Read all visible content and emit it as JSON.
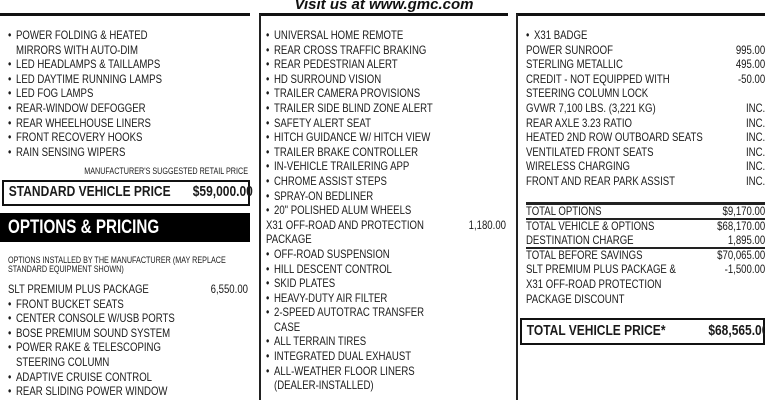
{
  "header": {
    "title": "Visit us at www.gmc.com"
  },
  "left": {
    "rows": [
      {
        "kind": "bullet",
        "text": "POWER FOLDING & HEATED"
      },
      {
        "kind": "cont",
        "text": "MIRRORS WITH AUTO-DIM"
      },
      {
        "kind": "bullet",
        "text": "LED HEADLAMPS & TAILLAMPS"
      },
      {
        "kind": "bullet",
        "text": "LED DAYTIME RUNNING LAMPS"
      },
      {
        "kind": "bullet",
        "text": "LED FOG LAMPS"
      },
      {
        "kind": "bullet",
        "text": "REAR-WINDOW DEFOGGER"
      },
      {
        "kind": "bullet",
        "text": "REAR WHEELHOUSE LINERS"
      },
      {
        "kind": "bullet",
        "text": "FRONT RECOVERY HOOKS"
      },
      {
        "kind": "bullet",
        "text": "RAIN SENSING WIPERS"
      }
    ],
    "msrp_caption": "MANUFACTURER'S SUGGESTED RETAIL PRICE",
    "standard_price_label": "STANDARD VEHICLE PRICE",
    "standard_price_value": "$59,000.00",
    "options_header": "OPTIONS & PRICING",
    "options_caption_1": "OPTIONS INSTALLED BY THE MANUFACTURER (MAY REPLACE",
    "options_caption_2": "STANDARD EQUIPMENT SHOWN)",
    "option_rows": [
      {
        "kind": "plain",
        "text": "SLT PREMIUM PLUS PACKAGE",
        "price": "6,550.00"
      },
      {
        "kind": "bullet",
        "text": "FRONT BUCKET SEATS"
      },
      {
        "kind": "bullet",
        "text": "CENTER CONSOLE W/USB PORTS"
      },
      {
        "kind": "bullet",
        "text": "BOSE PREMIUM SOUND SYSTEM"
      },
      {
        "kind": "bullet",
        "text": "POWER RAKE & TELESCOPING"
      },
      {
        "kind": "cont",
        "text": "STEERING COLUMN"
      },
      {
        "kind": "bullet",
        "text": "ADAPTIVE CRUISE CONTROL"
      },
      {
        "kind": "bullet",
        "text": "REAR SLIDING POWER WINDOW"
      }
    ]
  },
  "middle": {
    "rows": [
      {
        "kind": "bullet",
        "text": "UNIVERSAL HOME REMOTE"
      },
      {
        "kind": "bullet",
        "text": "REAR CROSS TRAFFIC BRAKING"
      },
      {
        "kind": "bullet",
        "text": "REAR PEDESTRIAN ALERT"
      },
      {
        "kind": "bullet",
        "text": "HD SURROUND VISION"
      },
      {
        "kind": "bullet",
        "text": "TRAILER CAMERA PROVISIONS"
      },
      {
        "kind": "bullet",
        "text": "TRAILER SIDE BLIND ZONE ALERT"
      },
      {
        "kind": "bullet",
        "text": "SAFETY ALERT SEAT"
      },
      {
        "kind": "bullet",
        "text": "HITCH GUIDANCE W/ HITCH VIEW"
      },
      {
        "kind": "bullet",
        "text": "TRAILER BRAKE CONTROLLER"
      },
      {
        "kind": "bullet",
        "text": "IN-VEHICLE TRAILERING APP"
      },
      {
        "kind": "bullet",
        "text": "CHROME ASSIST STEPS"
      },
      {
        "kind": "bullet",
        "text": "SPRAY-ON BEDLINER"
      },
      {
        "kind": "bullet",
        "text": "20\" POLISHED ALUM WHEELS"
      },
      {
        "kind": "plain",
        "text": "X31 OFF-ROAD AND PROTECTION",
        "price": "1,180.00"
      },
      {
        "kind": "plain",
        "text": "PACKAGE"
      },
      {
        "kind": "bullet",
        "text": "OFF-ROAD SUSPENSION"
      },
      {
        "kind": "bullet",
        "text": "HILL DESCENT CONTROL"
      },
      {
        "kind": "bullet",
        "text": "SKID PLATES"
      },
      {
        "kind": "bullet",
        "text": "HEAVY-DUTY AIR FILTER"
      },
      {
        "kind": "bullet",
        "text": "2-SPEED AUTOTRAC TRANSFER"
      },
      {
        "kind": "cont",
        "text": "CASE"
      },
      {
        "kind": "bullet",
        "text": "ALL TERRAIN TIRES"
      },
      {
        "kind": "bullet",
        "text": "INTEGRATED DUAL EXHAUST"
      },
      {
        "kind": "bullet",
        "text": "ALL-WEATHER FLOOR LINERS"
      },
      {
        "kind": "cont",
        "text": "(DEALER-INSTALLED)"
      }
    ]
  },
  "right": {
    "rows": [
      {
        "kind": "bullet",
        "text": "X31 BADGE"
      },
      {
        "kind": "plain",
        "text": "POWER SUNROOF",
        "price": "995.00"
      },
      {
        "kind": "plain",
        "text": "STERLING METALLIC",
        "price": "495.00"
      },
      {
        "kind": "plain",
        "text": "CREDIT - NOT EQUIPPED WITH",
        "price": "-50.00"
      },
      {
        "kind": "plain",
        "text": "STEERING COLUMN LOCK"
      },
      {
        "kind": "plain",
        "text": "GVWR 7,100 LBS. (3,221 KG)",
        "price": "INC."
      },
      {
        "kind": "plain",
        "text": "REAR AXLE 3.23 RATIO",
        "price": "INC."
      },
      {
        "kind": "plain",
        "text": "HEATED 2ND ROW OUTBOARD SEATS",
        "price": "INC."
      },
      {
        "kind": "plain",
        "text": "VENTILATED FRONT SEATS",
        "price": "INC."
      },
      {
        "kind": "plain",
        "text": "WIRELESS CHARGING",
        "price": "INC."
      },
      {
        "kind": "plain",
        "text": "FRONT AND REAR PARK ASSIST",
        "price": "INC."
      }
    ],
    "totals": [
      {
        "kind": "plain",
        "text": "TOTAL OPTIONS",
        "price": "$9,170.00"
      },
      {
        "kind": "plain",
        "text": "TOTAL VEHICLE & OPTIONS",
        "price": "$68,170.00"
      },
      {
        "kind": "plain",
        "text": "DESTINATION CHARGE",
        "price": "1,895.00"
      },
      {
        "kind": "plain",
        "text": "TOTAL BEFORE SAVINGS",
        "price": "$70,065.00"
      },
      {
        "kind": "plain",
        "text": "SLT PREMIUM PLUS PACKAGE &",
        "price": "-1,500.00"
      },
      {
        "kind": "plain",
        "text": "X31 OFF-ROAD PROTECTION"
      },
      {
        "kind": "plain",
        "text": "PACKAGE DISCOUNT"
      }
    ],
    "total_price_label": "TOTAL VEHICLE PRICE*",
    "total_price_value": "$68,565.00"
  }
}
